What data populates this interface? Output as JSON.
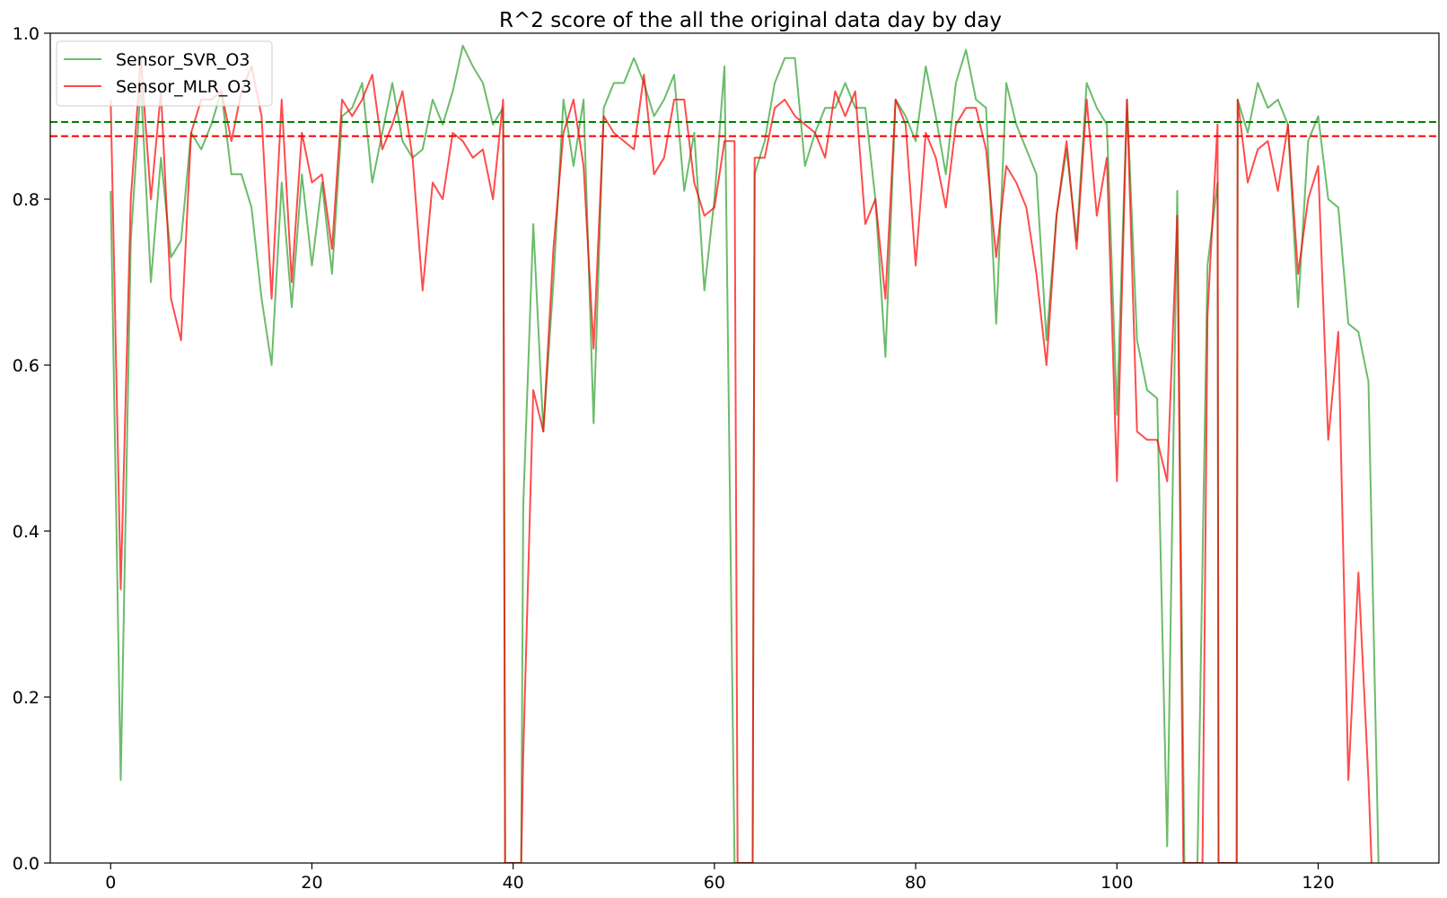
{
  "chart_data": {
    "type": "line",
    "title": "R^2 score of the all the original data day by day",
    "xlabel": "",
    "ylabel": "",
    "xlim": [
      -6,
      132
    ],
    "ylim": [
      0,
      1.0
    ],
    "x_ticks": [
      0,
      20,
      40,
      60,
      80,
      100,
      120
    ],
    "x_tick_labels": [
      "0",
      "20",
      "40",
      "60",
      "80",
      "100",
      "120"
    ],
    "y_ticks": [
      0,
      0.2,
      0.4,
      0.6,
      0.8,
      1.0
    ],
    "y_tick_labels": [
      "0.0",
      "0.2",
      "0.4",
      "0.6",
      "0.8",
      "1.0"
    ],
    "grid": false,
    "legend_position": "upper-left",
    "series": [
      {
        "name": "Sensor_SVR_O3",
        "color": "#2ca02c",
        "x": [
          0,
          1,
          2,
          3,
          4,
          5,
          6,
          7,
          8,
          9,
          10,
          11,
          12,
          13,
          14,
          15,
          16,
          17,
          18,
          19,
          20,
          21,
          22,
          23,
          24,
          25,
          26,
          27,
          28,
          29,
          30,
          31,
          32,
          33,
          34,
          35,
          36,
          37,
          38,
          39,
          39.2,
          40,
          40.8,
          41,
          42,
          43,
          44,
          45,
          46,
          47,
          48,
          49,
          50,
          51,
          52,
          53,
          54,
          55,
          56,
          57,
          58,
          59,
          60,
          61,
          62,
          62.3,
          63.8,
          64,
          65,
          66,
          67,
          68,
          69,
          70,
          71,
          72,
          73,
          74,
          75,
          76,
          77,
          78,
          79,
          80,
          81,
          82,
          83,
          84,
          85,
          86,
          87,
          88,
          89,
          90,
          91,
          92,
          93,
          94,
          95,
          96,
          97,
          98,
          99,
          100,
          101,
          102,
          103,
          104,
          105,
          106,
          106.7,
          107.3,
          108,
          109,
          110,
          110.1,
          111.9,
          112,
          113,
          114,
          115,
          116,
          117,
          118,
          119,
          120,
          121,
          122,
          123,
          124,
          125,
          126
        ],
        "y": [
          0.81,
          0.1,
          0.75,
          0.94,
          0.7,
          0.85,
          0.73,
          0.75,
          0.88,
          0.86,
          0.89,
          0.93,
          0.83,
          0.83,
          0.79,
          0.68,
          0.6,
          0.82,
          0.67,
          0.83,
          0.72,
          0.82,
          0.71,
          0.9,
          0.91,
          0.94,
          0.82,
          0.88,
          0.94,
          0.87,
          0.85,
          0.86,
          0.92,
          0.89,
          0.93,
          0.985,
          0.96,
          0.94,
          0.89,
          0.91,
          0.0,
          0.0,
          0.0,
          0.43,
          0.77,
          0.52,
          0.7,
          0.92,
          0.84,
          0.92,
          0.53,
          0.91,
          0.94,
          0.94,
          0.97,
          0.94,
          0.9,
          0.92,
          0.95,
          0.81,
          0.88,
          0.69,
          0.8,
          0.96,
          0.0,
          0.0,
          0.0,
          0.83,
          0.87,
          0.94,
          0.97,
          0.97,
          0.84,
          0.88,
          0.91,
          0.91,
          0.94,
          0.91,
          0.91,
          0.8,
          0.61,
          0.92,
          0.9,
          0.87,
          0.96,
          0.9,
          0.83,
          0.94,
          0.98,
          0.92,
          0.91,
          0.65,
          0.94,
          0.89,
          0.86,
          0.83,
          0.63,
          0.78,
          0.86,
          0.75,
          0.94,
          0.91,
          0.89,
          0.54,
          0.92,
          0.63,
          0.57,
          0.56,
          0.02,
          0.81,
          0.0,
          0.0,
          0.0,
          0.72,
          0.82,
          0.0,
          0.0,
          0.92,
          0.88,
          0.94,
          0.91,
          0.92,
          0.89,
          0.67,
          0.87,
          0.9,
          0.8,
          0.79,
          0.65,
          0.64,
          0.58,
          0.0
        ],
        "mean_line": 0.893
      },
      {
        "name": "Sensor_MLR_O3",
        "color": "#ff0000",
        "x": [
          0,
          1,
          2,
          3,
          4,
          5,
          6,
          7,
          8,
          9,
          10,
          11,
          12,
          13,
          14,
          15,
          16,
          17,
          18,
          19,
          20,
          21,
          22,
          23,
          24,
          25,
          26,
          27,
          28,
          29,
          30,
          31,
          32,
          33,
          34,
          35,
          36,
          37,
          38,
          39,
          39.2,
          40.8,
          41,
          42,
          43,
          44,
          45,
          46,
          47,
          48,
          49,
          50,
          51,
          52,
          53,
          54,
          55,
          56,
          57,
          58,
          59,
          60,
          61,
          62,
          62.3,
          63.8,
          64,
          65,
          66,
          67,
          68,
          69,
          70,
          71,
          72,
          73,
          74,
          75,
          76,
          77,
          78,
          79,
          80,
          81,
          82,
          83,
          84,
          85,
          86,
          87,
          88,
          89,
          90,
          91,
          92,
          93,
          94,
          95,
          96,
          97,
          98,
          99,
          100,
          101,
          102,
          103,
          104,
          105,
          106,
          106.6,
          108.5,
          109,
          110,
          110.1,
          111.9,
          112,
          113,
          114,
          115,
          116,
          117,
          118,
          119,
          120,
          121,
          122,
          123,
          124,
          125,
          125.3
        ],
        "y": [
          0.92,
          0.33,
          0.8,
          0.97,
          0.8,
          0.93,
          0.68,
          0.63,
          0.88,
          0.92,
          0.92,
          0.93,
          0.87,
          0.93,
          0.96,
          0.9,
          0.68,
          0.92,
          0.7,
          0.88,
          0.82,
          0.83,
          0.74,
          0.92,
          0.9,
          0.92,
          0.95,
          0.86,
          0.89,
          0.93,
          0.85,
          0.69,
          0.82,
          0.8,
          0.88,
          0.87,
          0.85,
          0.86,
          0.8,
          0.92,
          0.0,
          0.0,
          0.13,
          0.57,
          0.52,
          0.74,
          0.88,
          0.92,
          0.84,
          0.62,
          0.9,
          0.88,
          0.87,
          0.86,
          0.95,
          0.83,
          0.85,
          0.92,
          0.92,
          0.82,
          0.78,
          0.79,
          0.87,
          0.87,
          0.0,
          0.0,
          0.85,
          0.85,
          0.91,
          0.92,
          0.9,
          0.89,
          0.88,
          0.85,
          0.93,
          0.9,
          0.93,
          0.77,
          0.8,
          0.68,
          0.92,
          0.89,
          0.72,
          0.88,
          0.85,
          0.79,
          0.89,
          0.91,
          0.91,
          0.86,
          0.73,
          0.84,
          0.82,
          0.79,
          0.71,
          0.6,
          0.78,
          0.87,
          0.74,
          0.92,
          0.78,
          0.85,
          0.46,
          0.92,
          0.52,
          0.51,
          0.51,
          0.46,
          0.78,
          0.0,
          0.0,
          0.66,
          0.89,
          0.0,
          0.0,
          0.92,
          0.82,
          0.86,
          0.87,
          0.81,
          0.89,
          0.71,
          0.8,
          0.84,
          0.51,
          0.64,
          0.1,
          0.35,
          0.1,
          0.0
        ],
        "mean_line": 0.876
      }
    ]
  }
}
